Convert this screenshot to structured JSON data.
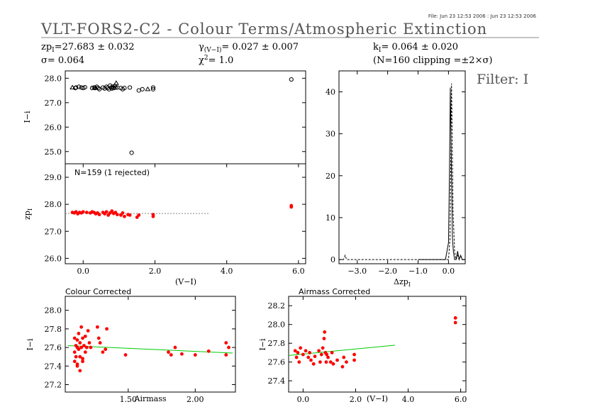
{
  "header": {
    "file_info": "File: Jun 23 12:53 2006 : Jun 23 12:53 2006",
    "title": "VLT-FORS2-C2 - Colour Terms/Atmospheric Extinction",
    "filter_label": "Filter: I"
  },
  "stats": {
    "zp": "zp",
    "zp_sub": "I",
    "zp_value": "=27.683 ± 0.032",
    "sigma": "σ= 0.064",
    "gamma": "γ",
    "gamma_sub": "(V−I)",
    "gamma_value": "= 0.027 ± 0.007",
    "chi": "χ",
    "chi_sup": "2",
    "chi_value": "= 1.0",
    "k": "k",
    "k_sub": "I",
    "k_value": "= 0.064 ± 0.020",
    "clipping": "(N=160 clipping =±2×σ)"
  },
  "colors": {
    "points": "#ff0000",
    "fit": "#00cc00",
    "axis": "#000000",
    "title_gray": "#555555"
  },
  "chart_data": [
    {
      "id": "mag-vs-color",
      "type": "scatter",
      "xlabel": "",
      "ylabel": "I−i",
      "xlim": [
        -0.5,
        6.2
      ],
      "ylim": [
        24.5,
        28.3
      ],
      "yticks": [
        25.0,
        26.0,
        27.0,
        28.0
      ],
      "ytick_labels": [
        "25.0",
        "26.0",
        "27.0",
        "28.0"
      ],
      "marker": "open-circle",
      "series": [
        {
          "x": [
            -0.22,
            -0.2,
            -0.12,
            -0.05,
            0.0,
            0.05,
            0.25,
            0.3,
            0.33,
            0.38,
            0.42,
            0.45,
            0.55,
            0.6,
            0.65,
            0.68,
            0.72,
            0.75,
            0.78,
            0.8,
            0.82,
            0.85,
            0.88,
            0.9,
            0.95,
            1.05,
            1.1,
            1.15,
            1.3,
            1.55,
            1.65,
            1.95,
            1.95,
            1.35
          ],
          "y": [
            27.6,
            27.62,
            27.65,
            27.62,
            27.6,
            27.63,
            27.6,
            27.62,
            27.6,
            27.65,
            27.6,
            27.55,
            27.62,
            27.58,
            27.65,
            27.6,
            27.55,
            27.7,
            27.62,
            27.58,
            27.65,
            27.6,
            27.68,
            27.62,
            27.62,
            27.6,
            27.55,
            27.6,
            27.62,
            27.5,
            27.55,
            27.55,
            27.62,
            24.95
          ]
        },
        {
          "x": [
            5.8
          ],
          "y": [
            27.95
          ]
        }
      ],
      "triangles": {
        "x": [
          -0.3,
          0.35,
          0.92,
          1.8
        ],
        "y": [
          27.62,
          27.6,
          27.8,
          27.55
        ]
      }
    },
    {
      "id": "zp-vs-color",
      "type": "scatter",
      "annotation": "N=159 (1 rejected)",
      "xlabel": "(V−I)",
      "ylabel": "zp",
      "ylabel_sub": "I",
      "xlim": [
        -0.5,
        6.2
      ],
      "ylim": [
        25.8,
        29.5
      ],
      "xticks": [
        0.0,
        2.0,
        4.0,
        6.0
      ],
      "xtick_labels": [
        "0.0",
        "2.0",
        "4.0",
        "6.0"
      ],
      "yticks": [
        26.0,
        27.0,
        28.0,
        29.0
      ],
      "ytick_labels": [
        "26.0",
        "27.0",
        "28.0",
        "29.0"
      ],
      "marker": "filled-circle",
      "fit_line": {
        "x": [
          -0.5,
          3.5
        ],
        "y": [
          27.66,
          27.66
        ]
      },
      "x": [
        -0.3,
        -0.25,
        -0.2,
        -0.15,
        -0.1,
        -0.05,
        0.0,
        0.1,
        0.2,
        0.25,
        0.3,
        0.35,
        0.4,
        0.45,
        0.55,
        0.6,
        0.65,
        0.7,
        0.75,
        0.8,
        0.85,
        0.9,
        0.95,
        1.05,
        1.1,
        1.15,
        1.25,
        1.3,
        1.5,
        1.55,
        1.95,
        1.95,
        5.8,
        5.8
      ],
      "y": [
        27.7,
        27.68,
        27.72,
        27.65,
        27.7,
        27.68,
        27.72,
        27.7,
        27.68,
        27.72,
        27.7,
        27.65,
        27.68,
        27.62,
        27.7,
        27.65,
        27.72,
        27.6,
        27.68,
        27.75,
        27.66,
        27.7,
        27.62,
        27.6,
        27.68,
        27.55,
        27.62,
        27.6,
        27.52,
        27.6,
        27.55,
        27.62,
        27.9,
        27.95
      ]
    },
    {
      "id": "histogram",
      "type": "line",
      "xlabel": "Δzp",
      "xlabel_sub": "I",
      "ylabel": "",
      "xlim": [
        -3.6,
        0.55
      ],
      "ylim": [
        -1,
        45
      ],
      "xticks": [
        -3.0,
        -2.0,
        -1.0,
        0.0
      ],
      "xtick_labels": [
        "−3.0",
        "−2.0",
        "−1.0",
        "0.0"
      ],
      "yticks": [
        0,
        10,
        20,
        30,
        40
      ],
      "ytick_labels": [
        "0",
        "10",
        "20",
        "30",
        "40"
      ],
      "x": [
        -3.6,
        -3.45,
        -3.4,
        -3.35,
        -3.3,
        0.0,
        0.05,
        0.1,
        0.15,
        0.2,
        0.25,
        0.3,
        0.35,
        0.4,
        0.45,
        0.5,
        0.55
      ],
      "y": [
        0,
        0,
        1,
        0,
        0,
        0,
        5,
        42,
        12,
        2,
        0,
        1,
        0,
        1,
        0,
        0,
        0
      ],
      "x_fine": [
        -1.0,
        -0.1,
        -0.05,
        0.0,
        0.03,
        0.06,
        0.1,
        0.13,
        0.16,
        0.2,
        0.25,
        0.3,
        0.35,
        0.4,
        0.45,
        0.55
      ],
      "y_fine": [
        0,
        0,
        2,
        4,
        20,
        41,
        20,
        5,
        2,
        0,
        0,
        2,
        0,
        1,
        0,
        0
      ]
    },
    {
      "id": "colour-corrected",
      "type": "scatter",
      "title": "Colour Corrected",
      "xlabel": "Airmass",
      "ylabel": "I−i",
      "xlim": [
        1.03,
        2.3
      ],
      "ylim": [
        27.12,
        28.15
      ],
      "xticks": [
        1.5,
        2.0
      ],
      "xtick_labels": [
        "1.50",
        "2.00"
      ],
      "yticks": [
        27.2,
        27.4,
        27.6,
        27.8,
        28.0
      ],
      "ytick_labels": [
        "27.2",
        "27.4",
        "27.6",
        "27.8",
        "28.0"
      ],
      "marker": "filled-circle",
      "fit_line": {
        "x": [
          1.05,
          2.28
        ],
        "y": [
          27.62,
          27.54
        ]
      },
      "x": [
        1.1,
        1.1,
        1.1,
        1.11,
        1.11,
        1.12,
        1.12,
        1.12,
        1.13,
        1.13,
        1.14,
        1.14,
        1.15,
        1.15,
        1.16,
        1.16,
        1.17,
        1.18,
        1.18,
        1.19,
        1.2,
        1.21,
        1.22,
        1.12,
        1.14,
        1.16,
        1.27,
        1.28,
        1.29,
        1.31,
        1.33,
        1.34,
        1.48,
        1.8,
        1.82,
        1.85,
        1.9,
        2.0,
        2.1,
        2.23,
        2.25,
        2.23
      ],
      "y": [
        27.7,
        27.55,
        27.45,
        27.62,
        27.5,
        27.68,
        27.6,
        27.42,
        27.75,
        27.58,
        27.65,
        27.5,
        27.82,
        27.6,
        27.7,
        27.48,
        27.62,
        27.72,
        27.55,
        27.6,
        27.78,
        27.65,
        27.6,
        27.4,
        27.35,
        27.45,
        27.82,
        27.7,
        27.65,
        27.55,
        27.58,
        27.8,
        27.52,
        27.55,
        27.52,
        27.6,
        27.53,
        27.52,
        27.56,
        27.52,
        27.6,
        27.65
      ]
    },
    {
      "id": "airmass-corrected",
      "type": "scatter",
      "title": "Airmass Corrected",
      "xlabel": "(V−I)",
      "ylabel": "I−i",
      "xlim": [
        -0.55,
        6.2
      ],
      "ylim": [
        27.28,
        28.3
      ],
      "xticks": [
        0.0,
        2.0,
        4.0,
        6.0
      ],
      "xtick_labels": [
        "0.0",
        "2.0",
        "4.0",
        "6.0"
      ],
      "yticks": [
        27.4,
        27.6,
        27.8,
        28.0,
        28.2
      ],
      "ytick_labels": [
        "27.4",
        "27.6",
        "27.8",
        "28.0",
        "28.2"
      ],
      "marker": "filled-circle",
      "fit_line": {
        "x": [
          -0.55,
          3.5
        ],
        "y": [
          27.67,
          27.78
        ]
      },
      "x": [
        -0.3,
        -0.25,
        -0.2,
        -0.15,
        -0.1,
        0.0,
        0.1,
        0.2,
        0.25,
        0.3,
        0.4,
        0.45,
        0.6,
        0.65,
        0.7,
        0.75,
        0.8,
        0.82,
        0.85,
        0.88,
        0.9,
        0.95,
        1.05,
        1.1,
        1.15,
        1.3,
        1.5,
        1.55,
        1.65,
        1.95,
        1.95,
        5.8,
        5.8
      ],
      "y": [
        27.72,
        27.65,
        27.7,
        27.6,
        27.75,
        27.68,
        27.72,
        27.65,
        27.7,
        27.62,
        27.58,
        27.66,
        27.72,
        27.6,
        27.68,
        27.75,
        27.85,
        27.92,
        27.7,
        27.6,
        27.68,
        27.65,
        27.6,
        27.7,
        27.58,
        27.62,
        27.55,
        27.65,
        27.6,
        27.62,
        27.68,
        28.02,
        28.07
      ]
    }
  ]
}
